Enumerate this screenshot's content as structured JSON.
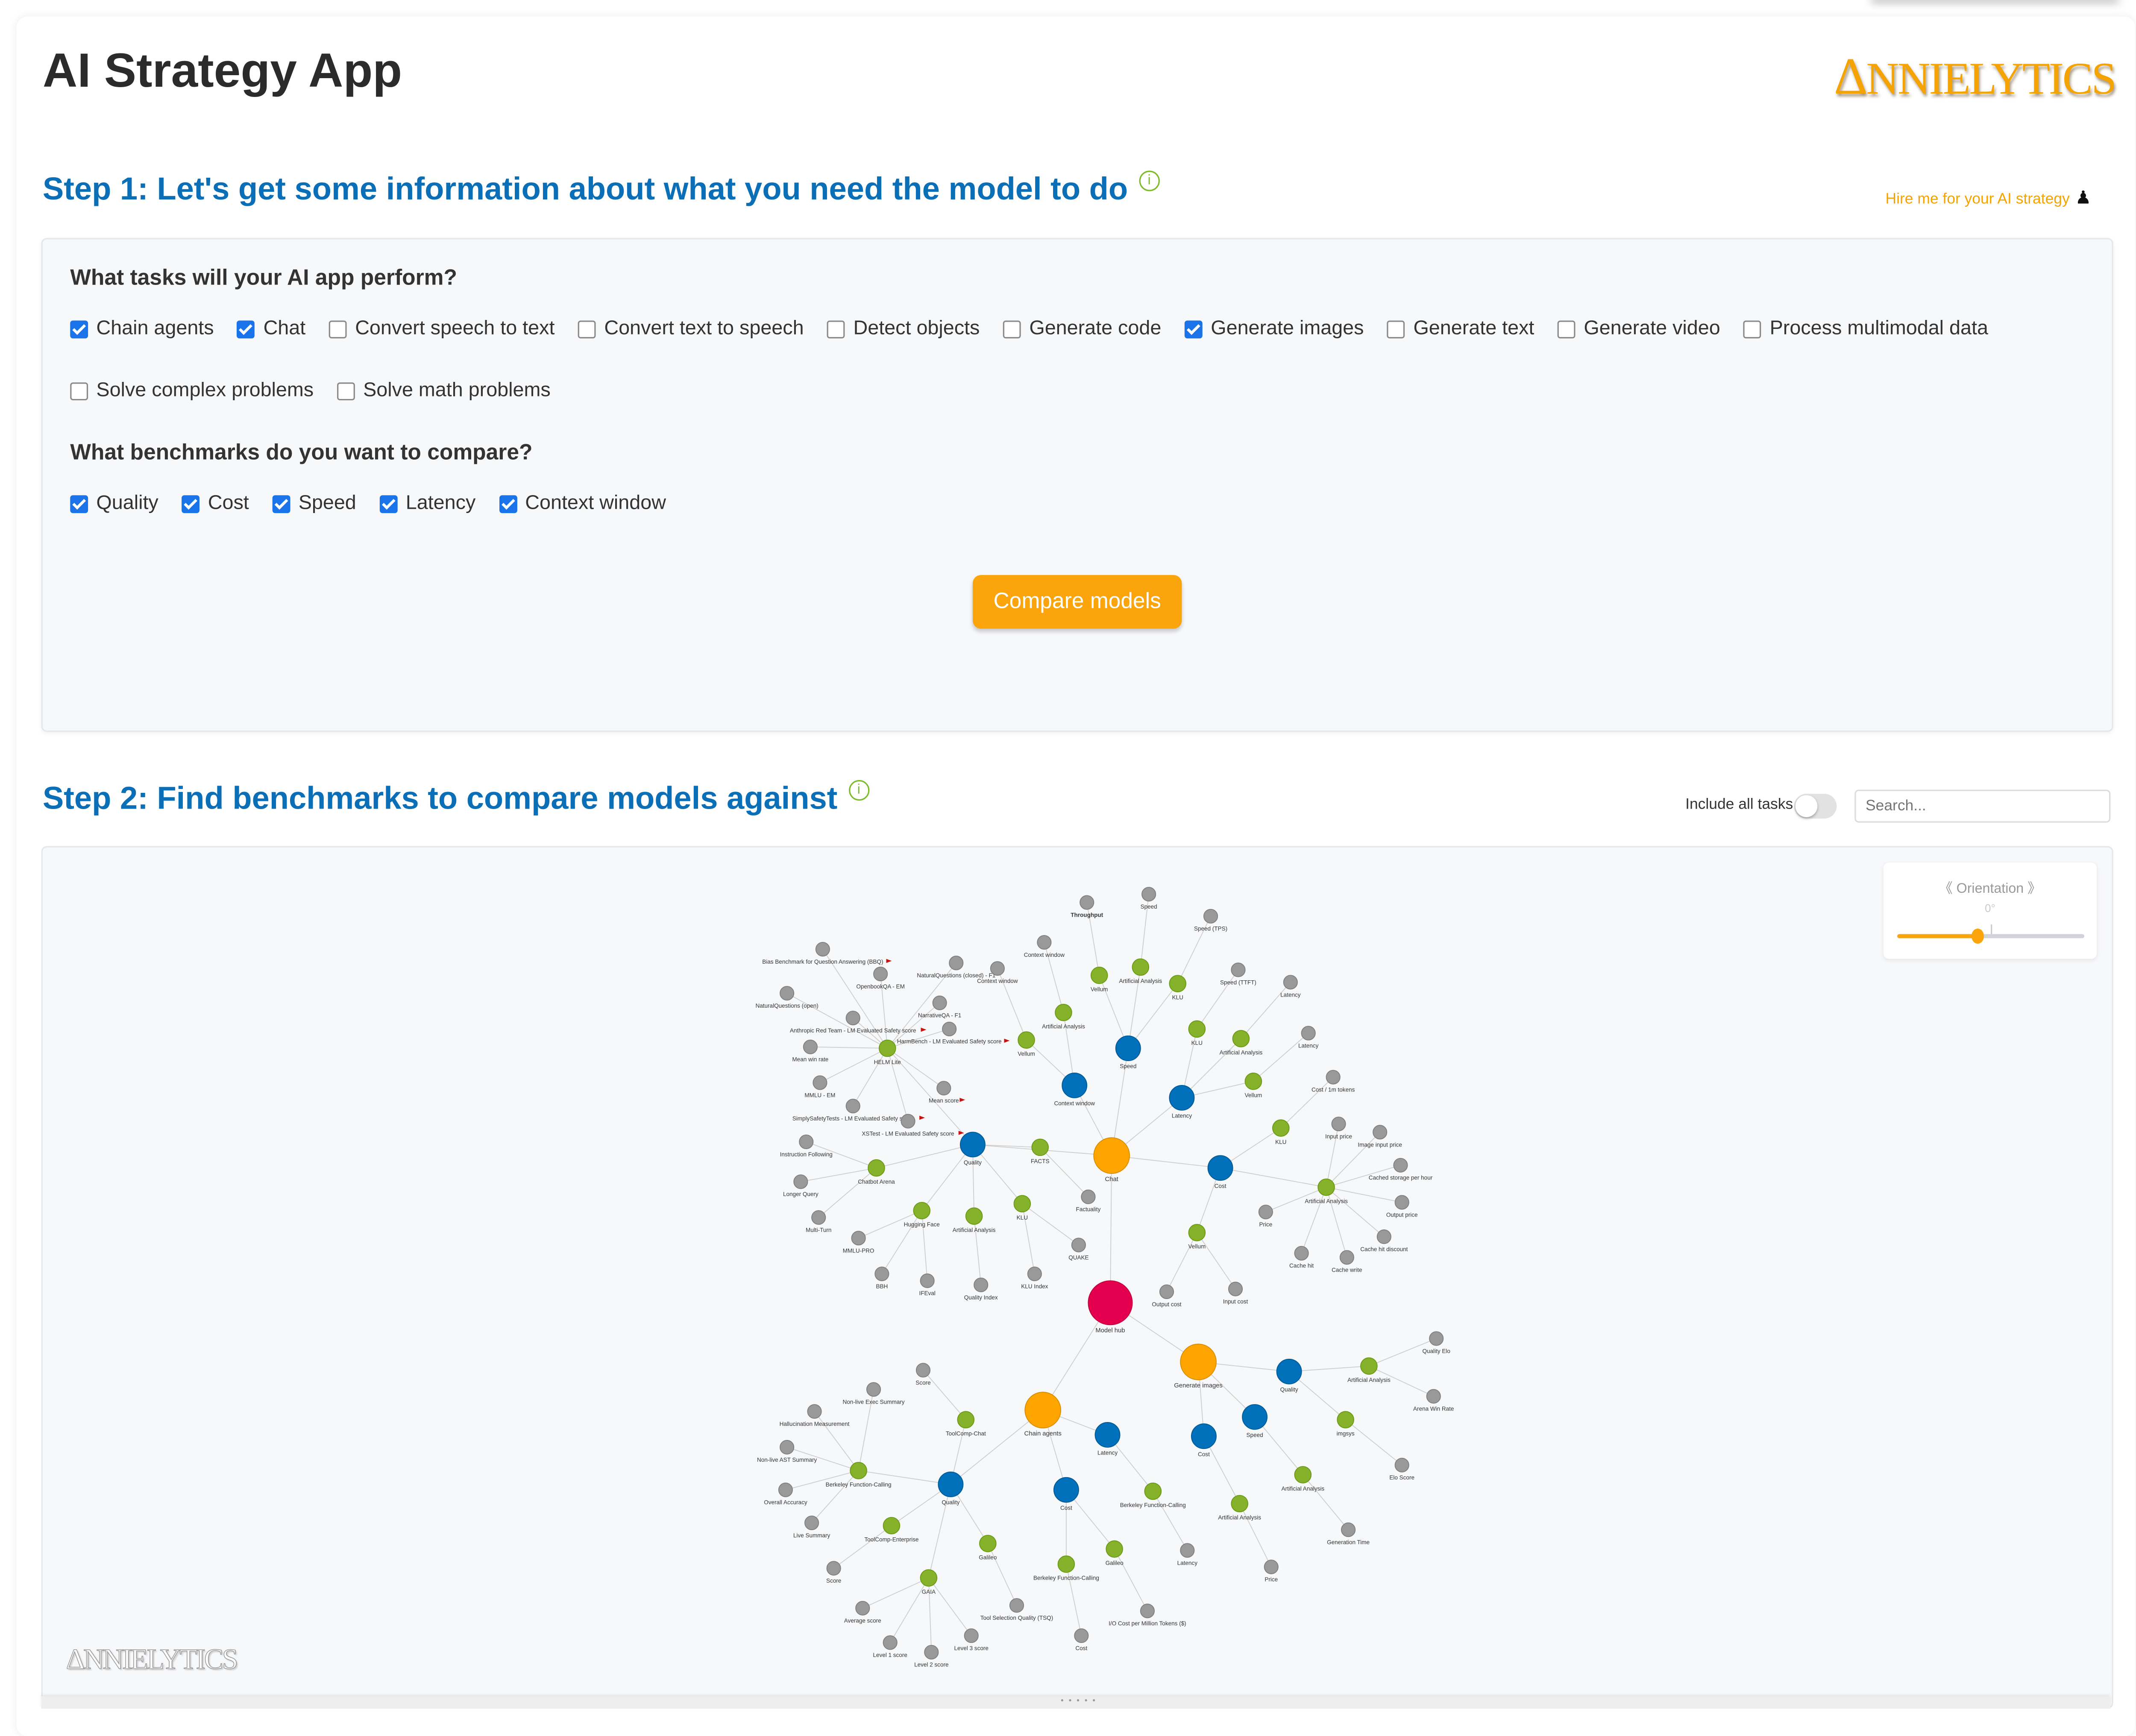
{
  "app": {
    "title": "AI Strategy App",
    "logo_text": "ANNIELYTICS",
    "hire_link": "Hire me for your AI strategy"
  },
  "step1": {
    "heading": "Step 1: Let's get some information about what you need the model to do",
    "tasks_question": "What tasks will your AI app perform?",
    "tasks": [
      {
        "label": "Chain agents",
        "checked": true
      },
      {
        "label": "Chat",
        "checked": true
      },
      {
        "label": "Convert speech to text",
        "checked": false
      },
      {
        "label": "Convert text to speech",
        "checked": false
      },
      {
        "label": "Detect objects",
        "checked": false
      },
      {
        "label": "Generate code",
        "checked": false
      },
      {
        "label": "Generate images",
        "checked": true
      },
      {
        "label": "Generate text",
        "checked": false
      },
      {
        "label": "Generate video",
        "checked": false
      },
      {
        "label": "Process multimodal data",
        "checked": false
      },
      {
        "label": "Solve complex problems",
        "checked": false
      },
      {
        "label": "Solve math problems",
        "checked": false
      }
    ],
    "benchmarks_question": "What benchmarks do you want to compare?",
    "benchmarks": [
      {
        "label": "Quality",
        "checked": true
      },
      {
        "label": "Cost",
        "checked": true
      },
      {
        "label": "Speed",
        "checked": true
      },
      {
        "label": "Latency",
        "checked": true
      },
      {
        "label": "Context window",
        "checked": true
      }
    ],
    "compare_button": "Compare models"
  },
  "step2": {
    "heading": "Step 2: Find benchmarks to compare models against",
    "include_all_tasks_label": "Include all tasks",
    "include_all_tasks": false,
    "search_placeholder": "Search...",
    "orientation": {
      "label": "《 Orientation 》",
      "value_text": "0°",
      "value_fraction": 0.43
    },
    "watermark": "ANNIELYTICS"
  },
  "colors": {
    "hub": "#e5004f",
    "task": "#ffa500",
    "benchmark": "#0070bb",
    "source": "#85b22a",
    "metric": "#999999",
    "flag": "#cc1111",
    "accent": "#fba40c",
    "heading": "#0b6fb8"
  },
  "graph": {
    "nodes": [
      {
        "id": "hub",
        "label": "Model hub",
        "type": "hub"
      },
      {
        "id": "chat",
        "label": "Chat",
        "type": "task",
        "parent": "hub"
      },
      {
        "id": "gi",
        "label": "Generate images",
        "type": "task",
        "parent": "hub"
      },
      {
        "id": "ca",
        "label": "Chain agents",
        "type": "task",
        "parent": "hub"
      },
      {
        "id": "cq",
        "label": "Quality",
        "type": "benchmark",
        "parent": "chat"
      },
      {
        "id": "ccw",
        "label": "Context window",
        "type": "benchmark",
        "parent": "chat"
      },
      {
        "id": "csp",
        "label": "Speed",
        "type": "benchmark",
        "parent": "chat"
      },
      {
        "id": "clat",
        "label": "Latency",
        "type": "benchmark",
        "parent": "chat"
      },
      {
        "id": "ccost",
        "label": "Cost",
        "type": "benchmark",
        "parent": "chat"
      },
      {
        "id": "helm",
        "label": "HELM Lite",
        "type": "source",
        "parent": "cq"
      },
      {
        "id": "h1",
        "label": "Bias Benchmark for Question Answering (BBQ)",
        "type": "metric",
        "parent": "helm",
        "flag": true
      },
      {
        "id": "h2",
        "label": "OpenbookQA - EM",
        "type": "metric",
        "parent": "helm"
      },
      {
        "id": "h3",
        "label": "NaturalQuestions (closed) - F1",
        "type": "metric",
        "parent": "helm"
      },
      {
        "id": "h4",
        "label": "NaturalQuestions (open)",
        "type": "metric",
        "parent": "helm"
      },
      {
        "id": "h5",
        "label": "Anthropic Red Team - LM Evaluated Safety score",
        "type": "metric",
        "parent": "helm",
        "flag": true
      },
      {
        "id": "h6",
        "label": "NarrativeQA - F1",
        "type": "metric",
        "parent": "helm"
      },
      {
        "id": "h7",
        "label": "HarmBench - LM Evaluated Safety score",
        "type": "metric",
        "parent": "helm",
        "flag": true
      },
      {
        "id": "h8",
        "label": "Mean win rate",
        "type": "metric",
        "parent": "helm"
      },
      {
        "id": "h9",
        "label": "MMLU - EM",
        "type": "metric",
        "parent": "helm"
      },
      {
        "id": "h10",
        "label": "SimplySafetyTests - LM Evaluated Safety score",
        "type": "metric",
        "parent": "helm",
        "flag": true
      },
      {
        "id": "h11",
        "label": "XSTest - LM Evaluated Safety score",
        "type": "metric",
        "parent": "helm",
        "flag": true
      },
      {
        "id": "h12",
        "label": "Mean score",
        "type": "metric",
        "parent": "helm",
        "flag": true
      },
      {
        "id": "cba",
        "label": "Chatbot Arena",
        "type": "source",
        "parent": "cq"
      },
      {
        "id": "cb1",
        "label": "Instruction Following",
        "type": "metric",
        "parent": "cba"
      },
      {
        "id": "cb2",
        "label": "Longer Query",
        "type": "metric",
        "parent": "cba"
      },
      {
        "id": "cb3",
        "label": "Multi-Turn",
        "type": "metric",
        "parent": "cba"
      },
      {
        "id": "hf",
        "label": "Hugging Face",
        "type": "source",
        "parent": "cq"
      },
      {
        "id": "hf1",
        "label": "MMLU-PRO",
        "type": "metric",
        "parent": "hf"
      },
      {
        "id": "hf2",
        "label": "BBH",
        "type": "metric",
        "parent": "hf"
      },
      {
        "id": "hf3",
        "label": "IFEval",
        "type": "metric",
        "parent": "hf"
      },
      {
        "id": "cqaa",
        "label": "Artificial Analysis",
        "type": "source",
        "parent": "cq"
      },
      {
        "id": "cqaa1",
        "label": "Quality Index",
        "type": "metric",
        "parent": "cqaa"
      },
      {
        "id": "cqklu",
        "label": "KLU",
        "type": "source",
        "parent": "cq"
      },
      {
        "id": "cqklu1",
        "label": "KLU Index",
        "type": "metric",
        "parent": "cqklu"
      },
      {
        "id": "cqklu2",
        "label": "QUAKE",
        "type": "metric",
        "parent": "cqklu"
      },
      {
        "id": "facts",
        "label": "FACTS",
        "type": "source",
        "parent": "cq"
      },
      {
        "id": "facts1",
        "label": "Factuality",
        "type": "metric",
        "parent": "facts"
      },
      {
        "id": "cwv",
        "label": "Vellum",
        "type": "source",
        "parent": "ccw"
      },
      {
        "id": "cwv1",
        "label": "Context window",
        "type": "metric",
        "parent": "cwv"
      },
      {
        "id": "cwaa",
        "label": "Artificial Analysis",
        "type": "source",
        "parent": "ccw"
      },
      {
        "id": "cwaa1",
        "label": "Context window",
        "type": "metric",
        "parent": "cwaa"
      },
      {
        "id": "spv",
        "label": "Vellum",
        "type": "source",
        "parent": "csp"
      },
      {
        "id": "spv1",
        "label": "Throughput",
        "type": "metric",
        "parent": "spv",
        "bold": true
      },
      {
        "id": "spaa",
        "label": "Artificial Analysis",
        "type": "source",
        "parent": "csp"
      },
      {
        "id": "spaa1",
        "label": "Speed",
        "type": "metric",
        "parent": "spaa"
      },
      {
        "id": "spk",
        "label": "KLU",
        "type": "source",
        "parent": "csp"
      },
      {
        "id": "spk1",
        "label": "Speed (TPS)",
        "type": "metric",
        "parent": "spk"
      },
      {
        "id": "lk",
        "label": "KLU",
        "type": "source",
        "parent": "clat"
      },
      {
        "id": "lk1",
        "label": "Speed (TTFT)",
        "type": "metric",
        "parent": "lk"
      },
      {
        "id": "laa",
        "label": "Artificial Analysis",
        "type": "source",
        "parent": "clat"
      },
      {
        "id": "laa1",
        "label": "Latency",
        "type": "metric",
        "parent": "laa"
      },
      {
        "id": "lv",
        "label": "Vellum",
        "type": "source",
        "parent": "clat"
      },
      {
        "id": "lv1",
        "label": "Latency",
        "type": "metric",
        "parent": "lv"
      },
      {
        "id": "cok",
        "label": "KLU",
        "type": "source",
        "parent": "ccost"
      },
      {
        "id": "cok1",
        "label": "Cost / 1m tokens",
        "type": "metric",
        "parent": "cok"
      },
      {
        "id": "coaa",
        "label": "Artificial Analysis",
        "type": "source",
        "parent": "ccost"
      },
      {
        "id": "coaa1",
        "label": "Input price",
        "type": "metric",
        "parent": "coaa"
      },
      {
        "id": "coaa2",
        "label": "Image input price",
        "type": "metric",
        "parent": "coaa"
      },
      {
        "id": "coaa3",
        "label": "Cached storage per hour",
        "type": "metric",
        "parent": "coaa"
      },
      {
        "id": "coaa4",
        "label": "Output price",
        "type": "metric",
        "parent": "coaa"
      },
      {
        "id": "coaa5",
        "label": "Cache hit discount",
        "type": "metric",
        "parent": "coaa"
      },
      {
        "id": "coaa6",
        "label": "Cache write",
        "type": "metric",
        "parent": "coaa"
      },
      {
        "id": "coaa7",
        "label": "Cache hit",
        "type": "metric",
        "parent": "coaa"
      },
      {
        "id": "coaa8",
        "label": "Price",
        "type": "metric",
        "parent": "coaa"
      },
      {
        "id": "cov",
        "label": "Vellum",
        "type": "source",
        "parent": "ccost"
      },
      {
        "id": "cov1",
        "label": "Output cost",
        "type": "metric",
        "parent": "cov"
      },
      {
        "id": "cov2",
        "label": "Input cost",
        "type": "metric",
        "parent": "cov"
      },
      {
        "id": "giq",
        "label": "Quality",
        "type": "benchmark",
        "parent": "gi"
      },
      {
        "id": "giqaa",
        "label": "Artificial Analysis",
        "type": "source",
        "parent": "giq"
      },
      {
        "id": "giqaa1",
        "label": "Quality Elo",
        "type": "metric",
        "parent": "giqaa"
      },
      {
        "id": "giqaa2",
        "label": "Arena Win Rate",
        "type": "metric",
        "parent": "giqaa"
      },
      {
        "id": "imgsys",
        "label": "imgsys",
        "type": "source",
        "parent": "giq"
      },
      {
        "id": "imgsys1",
        "label": "Elo Score",
        "type": "metric",
        "parent": "imgsys"
      },
      {
        "id": "gisp",
        "label": "Speed",
        "type": "benchmark",
        "parent": "gi"
      },
      {
        "id": "gispaa",
        "label": "Artificial Analysis",
        "type": "source",
        "parent": "gisp"
      },
      {
        "id": "gispaa1",
        "label": "Generation Time",
        "type": "metric",
        "parent": "gispaa"
      },
      {
        "id": "gico",
        "label": "Cost",
        "type": "benchmark",
        "parent": "gi"
      },
      {
        "id": "gicoaa",
        "label": "Artificial Analysis",
        "type": "source",
        "parent": "gico"
      },
      {
        "id": "gicoaa1",
        "label": "Price",
        "type": "metric",
        "parent": "gicoaa"
      },
      {
        "id": "caq",
        "label": "Quality",
        "type": "benchmark",
        "parent": "ca"
      },
      {
        "id": "bfc",
        "label": "Berkeley Function-Calling",
        "type": "source",
        "parent": "caq"
      },
      {
        "id": "bfc1",
        "label": "Hallucination Measurement",
        "type": "metric",
        "parent": "bfc"
      },
      {
        "id": "bfc2",
        "label": "Non-live Exec Summary",
        "type": "metric",
        "parent": "bfc"
      },
      {
        "id": "bfc3",
        "label": "Non-live AST Summary",
        "type": "metric",
        "parent": "bfc"
      },
      {
        "id": "bfc4",
        "label": "Overall Accuracy",
        "type": "metric",
        "parent": "bfc"
      },
      {
        "id": "bfc5",
        "label": "Live Summary",
        "type": "metric",
        "parent": "bfc"
      },
      {
        "id": "tcc",
        "label": "ToolComp-Chat",
        "type": "source",
        "parent": "caq"
      },
      {
        "id": "tcc1",
        "label": "Score",
        "type": "metric",
        "parent": "tcc"
      },
      {
        "id": "tce",
        "label": "ToolComp-Enterprise",
        "type": "source",
        "parent": "caq"
      },
      {
        "id": "tce1",
        "label": "Score",
        "type": "metric",
        "parent": "tce"
      },
      {
        "id": "gaia",
        "label": "GAIA",
        "type": "source",
        "parent": "caq"
      },
      {
        "id": "gaia1",
        "label": "Average score",
        "type": "metric",
        "parent": "gaia"
      },
      {
        "id": "gaia2",
        "label": "Level 1 score",
        "type": "metric",
        "parent": "gaia"
      },
      {
        "id": "gaia3",
        "label": "Level 2 score",
        "type": "metric",
        "parent": "gaia"
      },
      {
        "id": "gaia4",
        "label": "Level 3 score",
        "type": "metric",
        "parent": "gaia"
      },
      {
        "id": "gal",
        "label": "Galileo",
        "type": "source",
        "parent": "caq"
      },
      {
        "id": "gal1",
        "label": "Tool Selection Quality (TSQ)",
        "type": "metric",
        "parent": "gal"
      },
      {
        "id": "cac",
        "label": "Cost",
        "type": "benchmark",
        "parent": "ca"
      },
      {
        "id": "cacb",
        "label": "Berkeley Function-Calling",
        "type": "source",
        "parent": "cac"
      },
      {
        "id": "cacb1",
        "label": "Cost",
        "type": "metric",
        "parent": "cacb"
      },
      {
        "id": "cacg",
        "label": "Galileo",
        "type": "source",
        "parent": "cac"
      },
      {
        "id": "cacg1",
        "label": "I/O Cost per Million Tokens ($)",
        "type": "metric",
        "parent": "cacg"
      },
      {
        "id": "cal",
        "label": "Latency",
        "type": "benchmark",
        "parent": "ca"
      },
      {
        "id": "calb",
        "label": "Berkeley Function-Calling",
        "type": "source",
        "parent": "cal"
      },
      {
        "id": "calb1",
        "label": "Latency",
        "type": "metric",
        "parent": "calb"
      }
    ]
  }
}
